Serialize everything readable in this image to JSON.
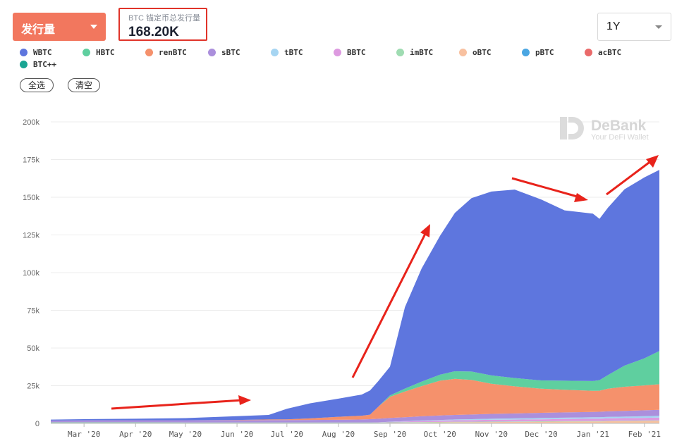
{
  "header": {
    "metric_label": "发行量",
    "total_label": "BTC 锚定币总发行量",
    "total_value": "168.20K",
    "range_label": "1Y"
  },
  "legend": {
    "items": [
      {
        "label": "WBTC",
        "color": "#5e76de"
      },
      {
        "label": "HBTC",
        "color": "#5fcf9f"
      },
      {
        "label": "renBTC",
        "color": "#f5916c"
      },
      {
        "label": "sBTC",
        "color": "#ab8fdc"
      },
      {
        "label": "tBTC",
        "color": "#a6d5f2"
      },
      {
        "label": "BBTC",
        "color": "#dd9ae0"
      },
      {
        "label": "imBTC",
        "color": "#9fdcb2"
      },
      {
        "label": "oBTC",
        "color": "#f8c1a0"
      },
      {
        "label": "pBTC",
        "color": "#4aa6e2"
      },
      {
        "label": "acBTC",
        "color": "#ea6a6a"
      },
      {
        "label": "BTC++",
        "color": "#1aa593"
      }
    ],
    "select_all": "全选",
    "clear": "清空"
  },
  "watermark": {
    "brand": "DeBank",
    "tagline": "Your DeFi Wallet"
  },
  "chart_data": {
    "type": "area",
    "stacked": true,
    "x_start": "2020-02-10",
    "x_end": "2021-02-10",
    "ylim": [
      0,
      200000
    ],
    "y_ticks": [
      0,
      25000,
      50000,
      75000,
      100000,
      125000,
      150000,
      175000,
      200000
    ],
    "y_tick_labels": [
      "0",
      "25k",
      "50k",
      "75k",
      "100k",
      "125k",
      "150k",
      "175k",
      "200k"
    ],
    "x_ticks": [
      {
        "date": "2020-03-01",
        "label": "Mar '20"
      },
      {
        "date": "2020-04-01",
        "label": "Apr '20"
      },
      {
        "date": "2020-05-01",
        "label": "May '20"
      },
      {
        "date": "2020-06-01",
        "label": "Jun '20"
      },
      {
        "date": "2020-07-01",
        "label": "Jul '20"
      },
      {
        "date": "2020-08-01",
        "label": "Aug '20"
      },
      {
        "date": "2020-09-01",
        "label": "Sep '20"
      },
      {
        "date": "2020-10-01",
        "label": "Oct '20"
      },
      {
        "date": "2020-11-01",
        "label": "Nov '20"
      },
      {
        "date": "2020-12-01",
        "label": "Dec '20"
      },
      {
        "date": "2021-01-01",
        "label": "Jan '21"
      },
      {
        "date": "2021-02-01",
        "label": "Feb '21"
      }
    ],
    "grid": true,
    "x": [
      "2020-02-10",
      "2020-03-01",
      "2020-04-01",
      "2020-05-01",
      "2020-06-01",
      "2020-06-20",
      "2020-07-01",
      "2020-07-15",
      "2020-08-01",
      "2020-08-15",
      "2020-08-20",
      "2020-08-25",
      "2020-09-01",
      "2020-09-10",
      "2020-09-20",
      "2020-10-01",
      "2020-10-10",
      "2020-10-20",
      "2020-11-01",
      "2020-11-15",
      "2020-12-01",
      "2020-12-15",
      "2021-01-01",
      "2021-01-05",
      "2021-01-10",
      "2021-01-20",
      "2021-02-01",
      "2021-02-10"
    ],
    "series": [
      {
        "name": "BTC++",
        "values": [
          300,
          300,
          300,
          300,
          300,
          300,
          300,
          300,
          300,
          300,
          300,
          300,
          300,
          300,
          300,
          300,
          300,
          300,
          300,
          300,
          300,
          300,
          300,
          300,
          300,
          300,
          300,
          300
        ]
      },
      {
        "name": "oBTC",
        "values": [
          0,
          0,
          0,
          0,
          0,
          0,
          0,
          0,
          0,
          0,
          0,
          0,
          100,
          200,
          300,
          400,
          500,
          500,
          600,
          700,
          800,
          900,
          1000,
          1000,
          1100,
          1200,
          1300,
          1400
        ]
      },
      {
        "name": "imBTC",
        "values": [
          400,
          400,
          400,
          300,
          300,
          300,
          300,
          300,
          300,
          300,
          300,
          300,
          300,
          300,
          300,
          300,
          300,
          300,
          300,
          300,
          300,
          300,
          300,
          300,
          300,
          300,
          300,
          300
        ]
      },
      {
        "name": "BBTC",
        "values": [
          0,
          0,
          0,
          0,
          0,
          0,
          0,
          0,
          0,
          0,
          0,
          100,
          300,
          500,
          700,
          900,
          1000,
          1100,
          1200,
          1200,
          1300,
          1400,
          1500,
          1500,
          1600,
          1700,
          1800,
          1900
        ]
      },
      {
        "name": "tBTC",
        "values": [
          0,
          0,
          0,
          0,
          0,
          0,
          0,
          0,
          0,
          0,
          0,
          0,
          100,
          200,
          300,
          400,
          500,
          600,
          700,
          800,
          900,
          900,
          1000,
          1000,
          1000,
          1000,
          1100,
          1100
        ]
      },
      {
        "name": "sBTC",
        "values": [
          1200,
          1300,
          1400,
          1500,
          1500,
          1600,
          1600,
          1700,
          1800,
          2000,
          2200,
          2400,
          2500,
          2600,
          2800,
          3000,
          3000,
          3100,
          3200,
          3300,
          3400,
          3500,
          3500,
          3600,
          3700,
          3800,
          3900,
          4000
        ]
      },
      {
        "name": "renBTC",
        "values": [
          0,
          0,
          0,
          0,
          200,
          400,
          500,
          1000,
          2000,
          2500,
          3000,
          8000,
          14000,
          17000,
          20000,
          23000,
          24000,
          23000,
          20000,
          18000,
          16000,
          15000,
          14000,
          14000,
          15000,
          16000,
          16500,
          17000
        ]
      },
      {
        "name": "HBTC",
        "values": [
          0,
          0,
          0,
          0,
          0,
          0,
          0,
          0,
          0,
          0,
          0,
          0,
          1000,
          2000,
          3000,
          4000,
          5000,
          5500,
          5500,
          5500,
          5500,
          6000,
          6500,
          7000,
          9000,
          14000,
          18000,
          22000
        ]
      },
      {
        "name": "WBTC",
        "values": [
          600,
          800,
          1000,
          1400,
          2500,
          3000,
          7000,
          10000,
          12000,
          14000,
          16000,
          17000,
          19000,
          54000,
          75000,
          92000,
          105000,
          115000,
          122000,
          125000,
          120000,
          113000,
          111000,
          107000,
          111000,
          117000,
          120000,
          120200
        ]
      }
    ],
    "colors": {
      "WBTC": "#5e76de",
      "HBTC": "#5fcf9f",
      "renBTC": "#f5916c",
      "sBTC": "#ab8fdc",
      "tBTC": "#a6d5f2",
      "BBTC": "#dd9ae0",
      "imBTC": "#9fdcb2",
      "oBTC": "#f8c1a0",
      "BTC++": "#1aa593"
    }
  }
}
